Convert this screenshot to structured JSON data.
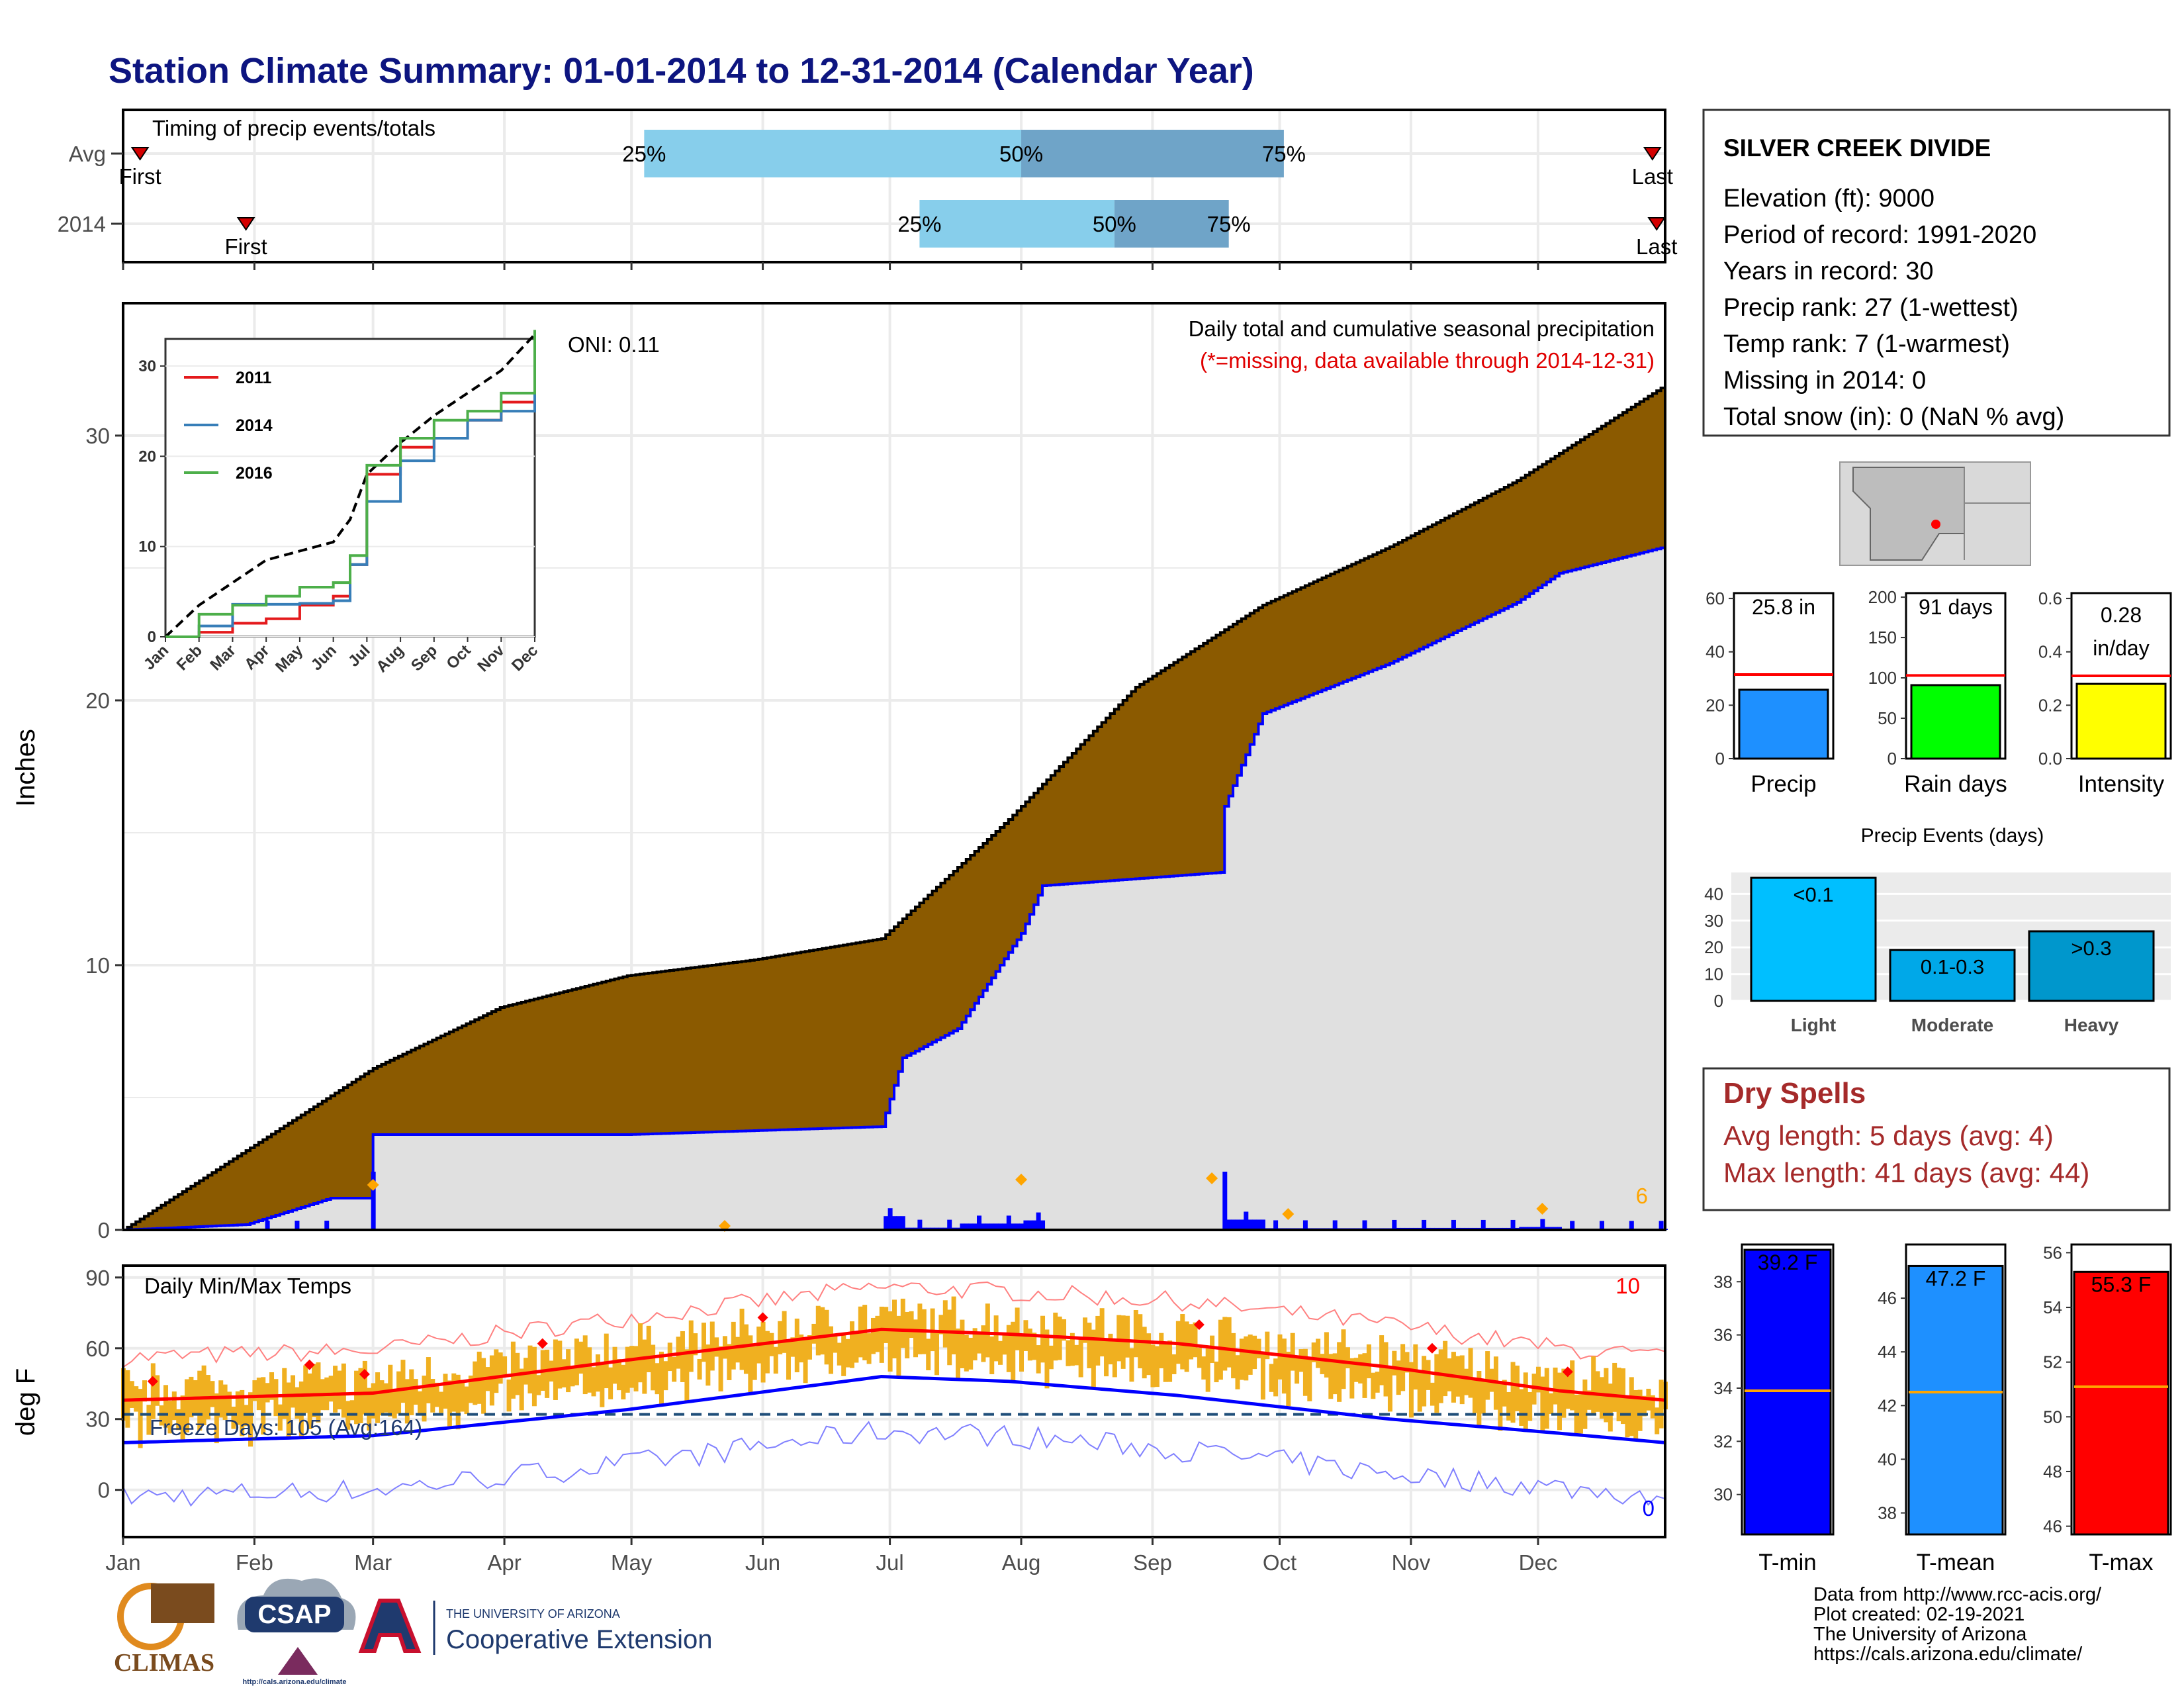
{
  "title": "Station Climate Summary: 01-01-2014 to 12-31-2014 (Calendar Year)",
  "months": [
    "Jan",
    "Feb",
    "Mar",
    "Apr",
    "May",
    "Jun",
    "Jul",
    "Aug",
    "Sep",
    "Oct",
    "Nov",
    "Dec"
  ],
  "timing": {
    "title": "Timing of precip events/totals",
    "rows": [
      {
        "label": "Avg",
        "first_label": "First",
        "last_label": "Last",
        "first_doy": 5,
        "last_doy": 362,
        "p25": 124,
        "p50": 213,
        "p75": 275
      },
      {
        "label": "2014",
        "first_label": "First",
        "last_label": "Last",
        "first_doy": 30,
        "last_doy": 363,
        "p25": 189,
        "p50": 235,
        "p75": 262
      }
    ],
    "pct_labels": [
      "25%",
      "50%",
      "75%"
    ]
  },
  "precip_panel": {
    "ylabel": "Inches",
    "yticks": [
      0,
      10,
      20,
      30
    ],
    "title": "Daily total and cumulative seasonal precipitation",
    "note": "(*=missing, data available through 2014-12-31)",
    "oni": "ONI: 0.11",
    "corner_count": "6"
  },
  "inset": {
    "legend": [
      {
        "name": "2011",
        "color": "#e41a1c"
      },
      {
        "name": "2014",
        "color": "#377eb8"
      },
      {
        "name": "2016",
        "color": "#4daf4a"
      }
    ],
    "yticks": [
      0,
      10,
      20,
      30
    ],
    "months": [
      "Jan",
      "Feb",
      "Mar",
      "Apr",
      "May",
      "Jun",
      "Jul",
      "Aug",
      "Sep",
      "Oct",
      "Nov",
      "Dec"
    ]
  },
  "temp_panel": {
    "ylabel": "deg F",
    "yticks": [
      0,
      30,
      60,
      90
    ],
    "title": "Daily Min/Max Temps",
    "freeze": "Freeze Days: 105 (Avg:164)",
    "count_hi": "10",
    "count_lo": "0"
  },
  "station": {
    "name": "SILVER CREEK DIVIDE",
    "lines": [
      "Elevation (ft): 9000",
      "Period of record: 1991-2020",
      "Years in record: 30",
      "Precip rank: 27 (1-wettest)",
      "Temp rank: 7 (1-warmest)",
      "Missing in 2014: 0",
      "Total snow (in): 0 (NaN % avg)"
    ]
  },
  "mini_bars": [
    {
      "label": "Precip",
      "value_text": "25.8 in",
      "value": 25.8,
      "avg": 31.5,
      "ymax": 62,
      "yticks": [
        0,
        20,
        40,
        60
      ],
      "color": "#1e90ff"
    },
    {
      "label": "Rain days",
      "value_text": "91 days",
      "value": 91,
      "avg": 103,
      "ymax": 205,
      "yticks": [
        0,
        50,
        100,
        150,
        200
      ],
      "color": "#00ff00"
    },
    {
      "label": "Intensity",
      "value_text": "0.28 in/day",
      "value": 0.28,
      "avg": 0.31,
      "ymax": 0.62,
      "yticks": [
        "0.0",
        "0.2",
        "0.4",
        "0.6"
      ],
      "color": "#ffff00"
    }
  ],
  "events": {
    "title": "Precip Events (days)",
    "yticks": [
      0,
      10,
      20,
      30,
      40
    ],
    "ymax": 48,
    "bars": [
      {
        "label": "Light",
        "value": 46,
        "text": "<0.1",
        "color": "#00bfff"
      },
      {
        "label": "Moderate",
        "value": 19,
        "text": "0.1-0.3",
        "color": "#00a8e8"
      },
      {
        "label": "Heavy",
        "value": 26,
        "text": ">0.3",
        "color": "#0097cc"
      }
    ]
  },
  "dry_spells": {
    "title": "Dry Spells",
    "avg_line": "Avg length: 5 days (avg: 4)",
    "max_line": "Max length: 41 days (avg: 44)"
  },
  "temp_bars": [
    {
      "label": "T-min",
      "value_text": "39.2 F",
      "value": 39.2,
      "avg": 33.9,
      "ymin": 28.5,
      "ymax": 39.4,
      "yticks": [
        30,
        32,
        34,
        36,
        38
      ],
      "color": "#0000ff"
    },
    {
      "label": "T-mean",
      "value_text": "47.2 F",
      "value": 47.2,
      "avg": 42.5,
      "ymin": 37.2,
      "ymax": 48.0,
      "yticks": [
        38,
        40,
        42,
        44,
        46
      ],
      "color": "#1e90ff"
    },
    {
      "label": "T-max",
      "value_text": "55.3 F",
      "value": 55.3,
      "avg": 51.1,
      "ymin": 45.7,
      "ymax": 56.3,
      "yticks": [
        46,
        48,
        50,
        52,
        54,
        56
      ],
      "color": "#ff0000"
    }
  ],
  "footer": {
    "lines": [
      "Data from http://www.rcc-acis.org/",
      "Plot created: 02-19-2021",
      "The University of Arizona",
      "https://cals.arizona.edu/climate/"
    ],
    "logos": {
      "climas": "CLIMAS",
      "csap": "CSAP",
      "csap_url": "http://cals.arizona.edu/climate",
      "ua_small": "THE UNIVERSITY OF ARIZONA",
      "ua_big": "Cooperative Extension"
    }
  },
  "chart_data": [
    {
      "type": "area",
      "title": "Daily total and cumulative seasonal precipitation",
      "ylabel": "Inches",
      "ylim": [
        0,
        35
      ],
      "series": [
        {
          "name": "",
          "x_doy": [
            1,
            31,
            60,
            90,
            120,
            150,
            180,
            210,
            240,
            270,
            300,
            330,
            365
          ],
          "values": [
            0,
            3.1,
            6.1,
            8.4,
            9.6,
            10.2,
            11.0,
            15.5,
            20.5,
            23.6,
            25.8,
            28.3,
            31.9
          ]
        },
        {
          "name": "2014",
          "x_doy": [
            1,
            30,
            50,
            59,
            60,
            120,
            180,
            185,
            198,
            213,
            218,
            260,
            261,
            270,
            300,
            330,
            340,
            365
          ],
          "values": [
            0,
            0.2,
            1.2,
            1.2,
            3.6,
            3.6,
            3.9,
            6.5,
            7.6,
            11.2,
            13.0,
            13.5,
            16.0,
            19.5,
            21.4,
            23.7,
            24.8,
            25.8
          ]
        }
      ]
    },
    {
      "type": "line",
      "title": "Daily Min/Max Temps",
      "ylabel": "deg F",
      "ylim": [
        -20,
        95
      ],
      "series": [
        {
          "name": "",
          "x_doy": [
            1,
            60,
            120,
            180,
            210,
            250,
            300,
            340,
            365
          ],
          "values": [
            38,
            41,
            55,
            68,
            66,
            62,
            52,
            42,
            38
          ]
        },
        {
          "name": "",
          "x_doy": [
            1,
            60,
            120,
            180,
            210,
            250,
            300,
            340,
            365
          ],
          "values": [
            20,
            23,
            34,
            48,
            46,
            40,
            30,
            24,
            20
          ]
        }
      ]
    },
    {
      "type": "line",
      "series": [
        {
          "name": "2011",
          "x": [
            1,
            2,
            3,
            4,
            5,
            6,
            6.5,
            7,
            8,
            9,
            10,
            11,
            12
          ],
          "values": [
            0,
            0.5,
            1.5,
            2.0,
            3.5,
            4.5,
            8,
            18,
            21,
            22,
            24,
            26,
            31
          ]
        },
        {
          "name": "2014",
          "x": [
            1,
            2,
            3,
            4,
            5,
            6,
            6.5,
            7,
            8,
            9,
            10,
            11,
            12
          ],
          "values": [
            0,
            1.2,
            3.6,
            3.6,
            3.7,
            4.0,
            8,
            15,
            19.5,
            22,
            24,
            25,
            32
          ]
        },
        {
          "name": "2016",
          "x": [
            1,
            2,
            3,
            4,
            5,
            6,
            6.5,
            7,
            8,
            9,
            10,
            11,
            12
          ],
          "values": [
            0,
            2.5,
            3.5,
            4.5,
            5.5,
            6.0,
            9,
            19,
            22,
            24,
            25,
            27,
            34
          ]
        }
      ],
      "ylim": [
        0,
        33
      ]
    },
    {
      "type": "bar",
      "title": "Precip Events (days)",
      "categories": [
        "Light",
        "Moderate",
        "Heavy"
      ],
      "values": [
        46,
        19,
        26
      ]
    }
  ]
}
